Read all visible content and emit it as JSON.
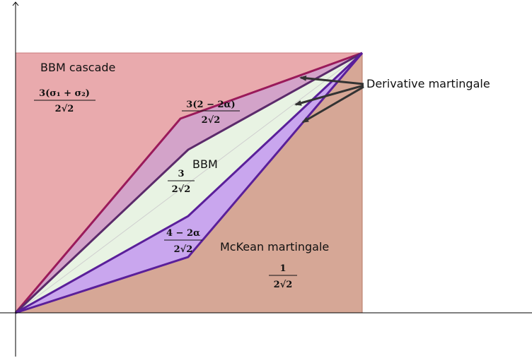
{
  "regions": {
    "bbm_cascade": {
      "label": "BBM cascade",
      "formula_num": "3(σ₁ + σ₂)",
      "formula_den": "2√2",
      "color": "#e9aaad"
    },
    "derivative_martingale": {
      "label": "Derivative martingale",
      "formula_num": "3(2 − 2α)",
      "formula_den": "2√2",
      "color": "#d3a3c9"
    },
    "bbm": {
      "label": "BBM",
      "formula_num": "3",
      "formula_den": "2√2",
      "color": "#e8f3e3"
    },
    "lower_band": {
      "formula_num": "4 − 2α",
      "formula_den": "2√2",
      "color": "#c9a6ee"
    },
    "mckean_martingale": {
      "label": "McKean martingale",
      "formula_num": "1",
      "formula_den": "2√2",
      "color": "#d6a796"
    }
  },
  "colors": {
    "upper_boundary": "#9a1a5a",
    "middle_boundary": "#5b2a6b",
    "lower_boundary": "#5a1f9a",
    "axes": "#000000",
    "arrows": "#333333"
  }
}
